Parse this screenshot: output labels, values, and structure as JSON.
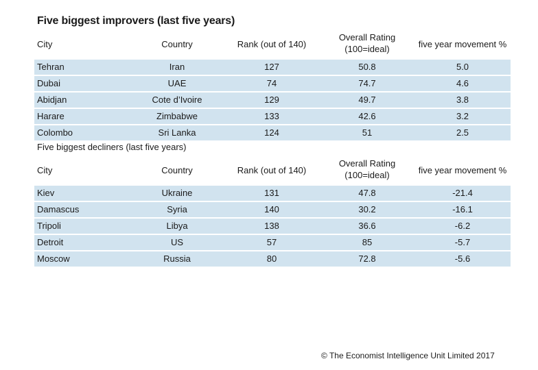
{
  "improvers": {
    "title": "Five biggest improvers (last five years)",
    "headers": {
      "city": "City",
      "country": "Country",
      "rank": "Rank (out of 140)",
      "rating_line1": "Overall Rating",
      "rating_line2": "(100=ideal)",
      "movement": "five year movement %"
    },
    "rows": [
      {
        "city": "Tehran",
        "country": "Iran",
        "rank": "127",
        "rating": "50.8",
        "movement": "5.0"
      },
      {
        "city": "Dubai",
        "country": "UAE",
        "rank": "74",
        "rating": "74.7",
        "movement": "4.6"
      },
      {
        "city": "Abidjan",
        "country": "Cote d’Ivoire",
        "rank": "129",
        "rating": "49.7",
        "movement": "3.8"
      },
      {
        "city": "Harare",
        "country": "Zimbabwe",
        "rank": "133",
        "rating": "42.6",
        "movement": "3.2"
      },
      {
        "city": "Colombo",
        "country": "Sri Lanka",
        "rank": "124",
        "rating": "51",
        "movement": "2.5"
      }
    ]
  },
  "decliners": {
    "title": "Five biggest decliners (last five years)",
    "headers": {
      "city": "City",
      "country": "Country",
      "rank": "Rank (out of 140)",
      "rating_line1": "Overall Rating",
      "rating_line2": "(100=ideal)",
      "movement": "five year movement %"
    },
    "rows": [
      {
        "city": "Kiev",
        "country": "Ukraine",
        "rank": "131",
        "rating": "47.8",
        "movement": "-21.4"
      },
      {
        "city": "Damascus",
        "country": "Syria",
        "rank": "140",
        "rating": "30.2",
        "movement": "-16.1"
      },
      {
        "city": "Tripoli",
        "country": "Libya",
        "rank": "138",
        "rating": "36.6",
        "movement": "-6.2"
      },
      {
        "city": "Detroit",
        "country": "US",
        "rank": "57",
        "rating": "85",
        "movement": "-5.7"
      },
      {
        "city": "Moscow",
        "country": "Russia",
        "rank": "80",
        "rating": "72.8",
        "movement": "-5.6"
      }
    ]
  },
  "footer": {
    "copyright": "© The Economist Intelligence Unit Limited 2017"
  },
  "colors": {
    "row_background": "#d1e3ef",
    "text": "#1a1a1a"
  }
}
